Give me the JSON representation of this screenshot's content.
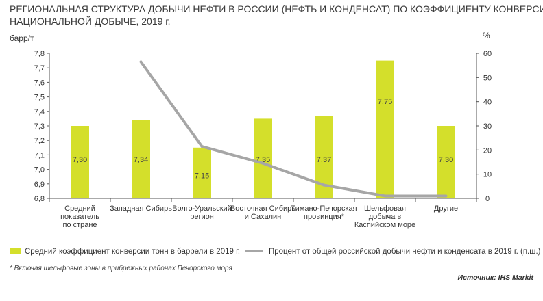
{
  "chart_data": {
    "type": "bar",
    "title_lines": [
      "РЕГИОНАЛЬНАЯ СТРУКТУРА ДОБЫЧИ НЕФТИ В РОССИИ (НЕФТЬ И КОНДЕНСАТ) ПО КОЭФФИЦИЕНТУ КОНВЕРСИИ И ДОЛЕ В",
      "НАЦИОНАЛЬНОЙ ДОБЫЧЕ, 2019 г."
    ],
    "y_left_label": "барр/т",
    "y_right_label": "%",
    "y_left_range": [
      6.8,
      7.8
    ],
    "y_left_ticks": [
      "7,8",
      "7,7",
      "7,6",
      "7,5",
      "7,4",
      "7,3",
      "7,2",
      "7,1",
      "7,0",
      "6,9",
      "6,8"
    ],
    "y_right_range": [
      0,
      60
    ],
    "y_right_ticks": [
      "60",
      "50",
      "40",
      "30",
      "20",
      "10",
      "0"
    ],
    "categories": [
      [
        "Средний",
        "показатель",
        "по стране"
      ],
      [
        "Западная Сибирь"
      ],
      [
        "Волго-Уральский",
        "регион"
      ],
      [
        "Восточная Сибирь",
        "и Сахалин"
      ],
      [
        "Тимано-Печорская",
        "провинция*"
      ],
      [
        "Шельфовая",
        "добыча в",
        "Каспийском море"
      ],
      [
        "Другие"
      ]
    ],
    "series": [
      {
        "name": "Средний коэффициент конверсии тонн в баррели в 2019 г.",
        "type": "bar",
        "axis": "left",
        "color": "#d4df2b",
        "values": [
          7.3,
          7.34,
          7.15,
          7.35,
          7.37,
          7.75,
          7.3
        ],
        "labels": [
          "7,30",
          "7,34",
          "7,15",
          "7,35",
          "7,37",
          "7,75",
          "7,30"
        ]
      },
      {
        "name": "Процент от общей российской добычи нефти и конденсата в 2019 г. (п.ш.)",
        "type": "line",
        "axis": "right",
        "color": "#a6a6a6",
        "values": [
          null,
          56.5,
          21.5,
          14.5,
          5.5,
          1,
          1
        ]
      }
    ],
    "grid": false,
    "legend_position": "bottom"
  },
  "footnote": "* Включая шельфовые зоны в прибрежных районах Печорского моря",
  "source": "Источник: IHS Markit"
}
